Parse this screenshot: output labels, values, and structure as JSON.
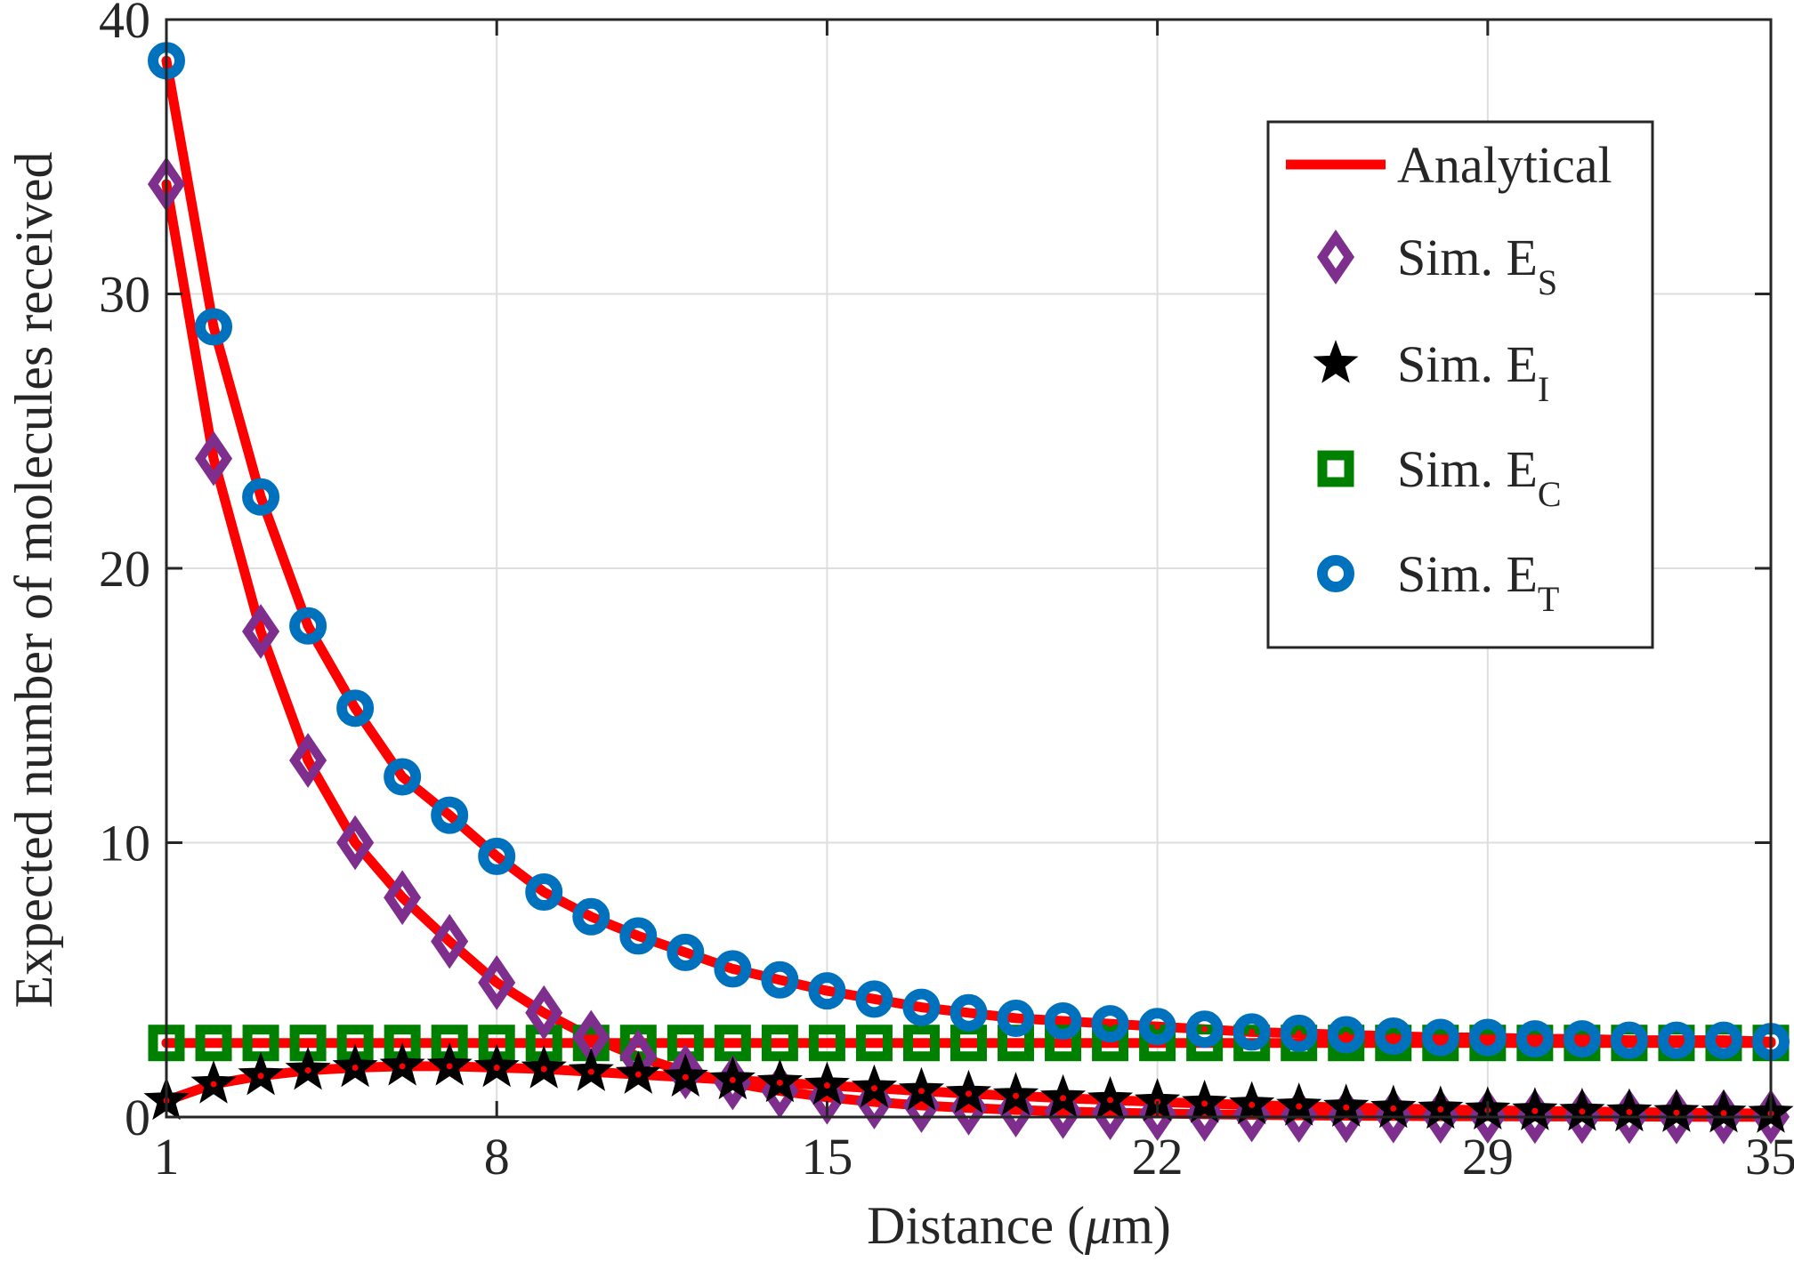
{
  "chart_data": {
    "type": "line",
    "title": "",
    "xlabel_prefix": "Distance (",
    "xlabel_mu": "μ",
    "xlabel_suffix": "m)",
    "ylabel": "Expected number of molecules received",
    "xlim": [
      1,
      35
    ],
    "ylim": [
      0,
      40
    ],
    "x_ticks": [
      1,
      8,
      15,
      22,
      29,
      35
    ],
    "y_ticks": [
      0,
      10,
      20,
      30,
      40
    ],
    "grid": true,
    "legend_position": "top-right",
    "x": [
      1,
      2,
      3,
      4,
      5,
      6,
      7,
      8,
      9,
      10,
      11,
      12,
      13,
      14,
      15,
      16,
      17,
      18,
      19,
      20,
      21,
      22,
      23,
      24,
      25,
      26,
      27,
      28,
      29,
      30,
      31,
      32,
      33,
      34,
      35
    ],
    "series": [
      {
        "label_main": "Sim. E",
        "label_sub": "S",
        "marker": "diamond",
        "color": "#7E2F8E",
        "values": [
          34.0,
          24.0,
          17.7,
          13.0,
          10.0,
          8.0,
          6.4,
          4.9,
          3.8,
          2.9,
          2.2,
          1.65,
          1.25,
          0.95,
          0.72,
          0.55,
          0.42,
          0.33,
          0.26,
          0.2,
          0.16,
          0.13,
          0.1,
          0.08,
          0.06,
          0.05,
          0.04,
          0.03,
          0.03,
          0.02,
          0.02,
          0.02,
          0.01,
          0.01,
          0.01
        ]
      },
      {
        "label_main": "Sim. E",
        "label_sub": "I",
        "marker": "star",
        "color": "#000000",
        "values": [
          0.6,
          1.2,
          1.5,
          1.7,
          1.8,
          1.85,
          1.85,
          1.8,
          1.75,
          1.65,
          1.55,
          1.45,
          1.35,
          1.25,
          1.15,
          1.05,
          0.95,
          0.85,
          0.77,
          0.69,
          0.62,
          0.55,
          0.49,
          0.44,
          0.39,
          0.35,
          0.31,
          0.28,
          0.25,
          0.22,
          0.2,
          0.18,
          0.16,
          0.14,
          0.13
        ]
      },
      {
        "label_main": "Sim. E",
        "label_sub": "C",
        "marker": "square",
        "color": "#008000",
        "values": [
          2.7,
          2.7,
          2.7,
          2.7,
          2.7,
          2.7,
          2.7,
          2.7,
          2.7,
          2.7,
          2.7,
          2.7,
          2.7,
          2.7,
          2.7,
          2.7,
          2.7,
          2.7,
          2.7,
          2.7,
          2.7,
          2.7,
          2.7,
          2.7,
          2.7,
          2.7,
          2.7,
          2.7,
          2.7,
          2.7,
          2.7,
          2.7,
          2.7,
          2.7,
          2.7
        ]
      },
      {
        "label_main": "Sim. E",
        "label_sub": "T",
        "marker": "circle",
        "color": "#0072BD",
        "values": [
          38.5,
          28.8,
          22.6,
          17.9,
          14.9,
          12.4,
          11.0,
          9.5,
          8.2,
          7.3,
          6.6,
          6.0,
          5.4,
          5.0,
          4.6,
          4.3,
          4.0,
          3.8,
          3.6,
          3.5,
          3.4,
          3.3,
          3.2,
          3.1,
          3.05,
          3.0,
          2.95,
          2.9,
          2.9,
          2.85,
          2.85,
          2.8,
          2.8,
          2.8,
          2.75
        ]
      }
    ],
    "analytical": {
      "label": "Analytical",
      "color": "#FF0000"
    }
  }
}
